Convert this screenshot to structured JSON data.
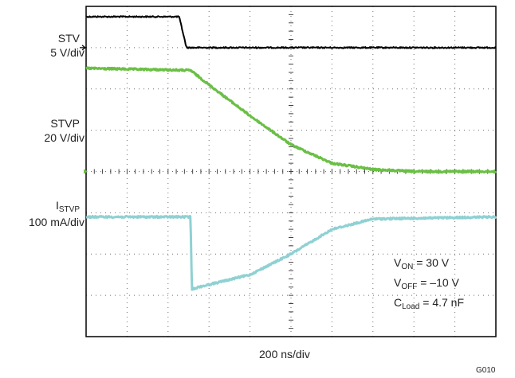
{
  "chart_data": {
    "type": "line",
    "x_scale": "200 ns/div",
    "divisions": {
      "x": 10,
      "y": 8
    },
    "grid": true,
    "channels": [
      {
        "name": "STV",
        "scale": "5 V/div",
        "color": "#000000",
        "x": [
          0,
          2.27,
          2.45,
          10
        ],
        "y_div": [
          7.75,
          7.75,
          7.0,
          7.0
        ]
      },
      {
        "name": "STVP",
        "scale": "20 V/div",
        "color": "#6abf45",
        "x": [
          0,
          2.55,
          3.0,
          4.0,
          5.0,
          6.0,
          7.0,
          8.0,
          10
        ],
        "y_div": [
          6.5,
          6.45,
          6.1,
          5.35,
          4.65,
          4.2,
          4.05,
          4.0,
          4.0
        ]
      },
      {
        "name": "I",
        "name_sub": "STVP",
        "scale": "100 mA/div",
        "color": "#8fd1d3",
        "x": [
          0,
          2.55,
          2.58,
          2.75,
          4.0,
          5.0,
          6.0,
          7.0,
          10
        ],
        "y_div": [
          2.9,
          2.9,
          1.15,
          1.2,
          1.5,
          2.0,
          2.6,
          2.85,
          2.9
        ]
      }
    ],
    "annotations": [
      {
        "main": "V",
        "sub": "ON",
        "rest": " = 30 V"
      },
      {
        "main": "V",
        "sub": "OFF",
        "rest": " = –10 V"
      },
      {
        "main": "C",
        "sub": "Load",
        "rest": " = 4.7 nF"
      }
    ],
    "figure_id": "G010"
  }
}
